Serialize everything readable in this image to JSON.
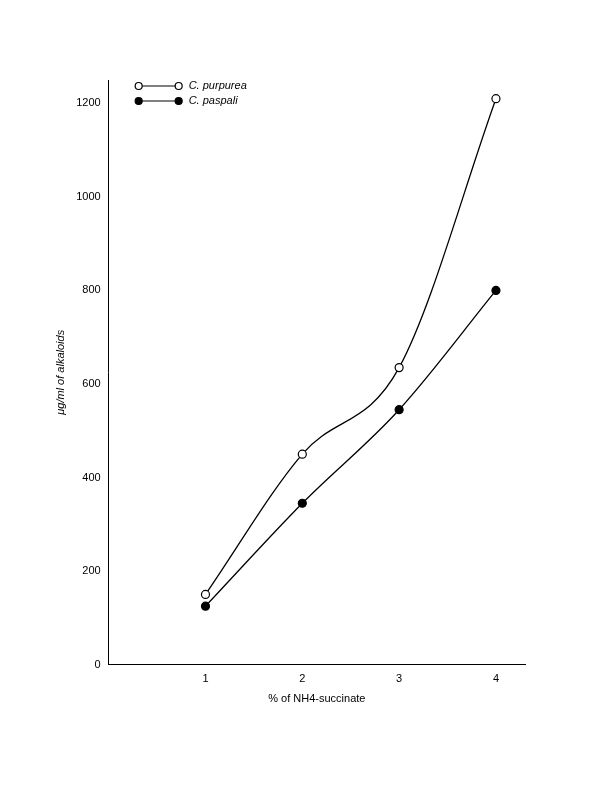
{
  "chart_data": {
    "type": "line",
    "x_label": "% of NH4-succinate",
    "y_label": "μg/ml of alkaloids",
    "x": [
      1,
      2,
      3,
      4
    ],
    "series": [
      {
        "name": "C. purpurea",
        "color": "#000000",
        "marker": "open_circle",
        "values": [
          150,
          450,
          635,
          1210
        ]
      },
      {
        "name": "C. paspali",
        "color": "#000000",
        "marker": "circle",
        "values": [
          125,
          345,
          545,
          800
        ]
      }
    ],
    "xlim": [
      0,
      4.3
    ],
    "xticks": [
      1,
      2,
      3,
      4
    ],
    "ylim": [
      0,
      1250
    ],
    "yticks": [
      0,
      200,
      400,
      600,
      800,
      1000,
      1200
    ],
    "grid": false,
    "legend": "top-left"
  }
}
